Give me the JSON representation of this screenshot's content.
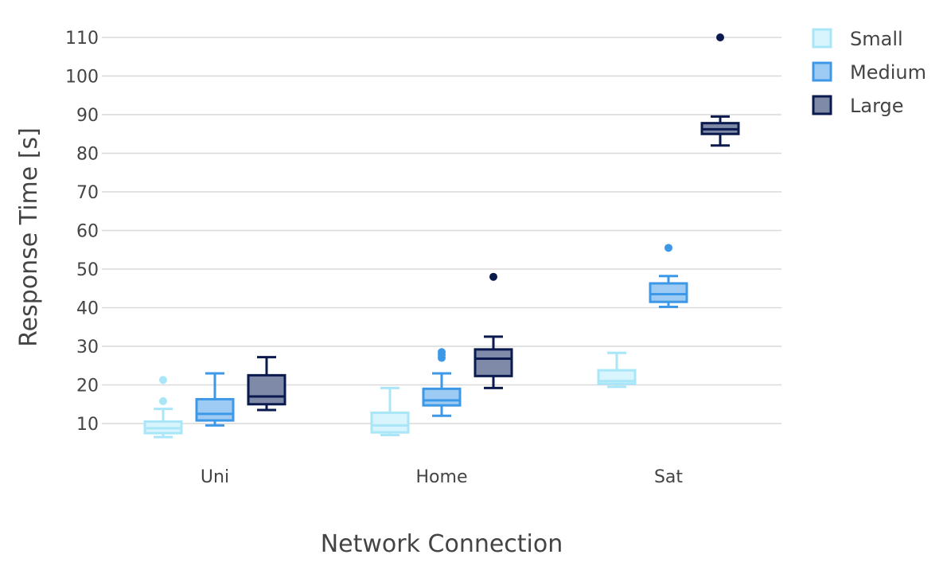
{
  "chart_data": {
    "type": "box",
    "xlabel": "Network Connection",
    "ylabel": "Response Time [s]",
    "categories": [
      "Uni",
      "Home",
      "Sat"
    ],
    "y_ticks": [
      10,
      20,
      30,
      40,
      50,
      60,
      70,
      80,
      90,
      100,
      110
    ],
    "ylim": [
      4,
      114
    ],
    "grid": true,
    "legend_position": "top-right",
    "series": [
      {
        "name": "Small",
        "color": "#a8e6f8",
        "fill": "#d8f4fc",
        "boxes": [
          {
            "category": "Uni",
            "min": 6.5,
            "q1": 7.5,
            "median": 8.8,
            "q3": 10.5,
            "max": 13.8,
            "outliers": [
              15.8,
              21.3
            ]
          },
          {
            "category": "Home",
            "min": 7.0,
            "q1": 7.7,
            "median": 9.5,
            "q3": 12.8,
            "max": 19.2,
            "outliers": []
          },
          {
            "category": "Sat",
            "min": 19.5,
            "q1": 20.3,
            "median": 21.0,
            "q3": 23.8,
            "max": 28.3,
            "outliers": []
          }
        ]
      },
      {
        "name": "Medium",
        "color": "#3d99e8",
        "fill": "#9ecbf4",
        "boxes": [
          {
            "category": "Uni",
            "min": 9.5,
            "q1": 10.8,
            "median": 12.5,
            "q3": 16.3,
            "max": 23.0,
            "outliers": []
          },
          {
            "category": "Home",
            "min": 12.0,
            "q1": 14.7,
            "median": 16.0,
            "q3": 19.0,
            "max": 23.0,
            "outliers": [
              27.0,
              27.8,
              28.5
            ]
          },
          {
            "category": "Sat",
            "min": 40.2,
            "q1": 41.5,
            "median": 43.5,
            "q3": 46.3,
            "max": 48.2,
            "outliers": [
              55.5
            ]
          }
        ]
      },
      {
        "name": "Large",
        "color": "#0b1a4e",
        "fill": "#7e8aa8",
        "boxes": [
          {
            "category": "Uni",
            "min": 13.5,
            "q1": 15.0,
            "median": 17.0,
            "q3": 22.5,
            "max": 27.2,
            "outliers": []
          },
          {
            "category": "Home",
            "min": 19.2,
            "q1": 22.3,
            "median": 26.8,
            "q3": 29.2,
            "max": 32.5,
            "outliers": [
              48.0
            ]
          },
          {
            "category": "Sat",
            "min": 82.0,
            "q1": 85.0,
            "median": 86.2,
            "q3": 87.8,
            "max": 89.5,
            "outliers": [
              110.0
            ]
          }
        ]
      }
    ]
  }
}
